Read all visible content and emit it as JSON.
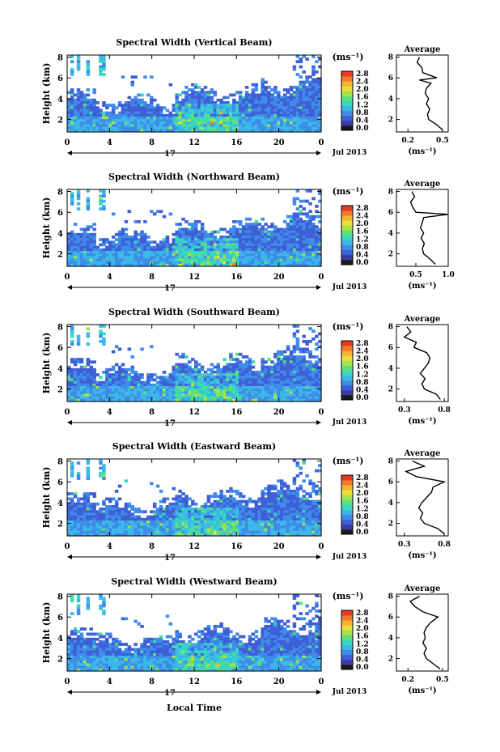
{
  "figure": {
    "xlabel": "Local Time",
    "date_label": "Jul 2013",
    "day_label": "17",
    "colorbar_unit": "(ms⁻¹)",
    "avg_title": "Average",
    "avg_unit": "(ms⁻¹)",
    "ylabel": "Height (km)"
  },
  "colors": {
    "scale": [
      "#1a1a1a",
      "#3b3ba8",
      "#3f5fd6",
      "#3f8ce8",
      "#3cb8e8",
      "#37d8c0",
      "#5ee07a",
      "#a8e24a",
      "#e8e238",
      "#f4b430",
      "#f27a28",
      "#e83a22"
    ]
  },
  "chart_data": [
    {
      "type": "heatmap",
      "title": "Spectral Width (Vertical Beam)",
      "x_ticks": [
        "0",
        "4",
        "8",
        "12",
        "16",
        "20",
        "0"
      ],
      "y_ticks": [
        "8",
        "6",
        "4",
        "2"
      ],
      "xlim": [
        0,
        24
      ],
      "ylim": [
        0.8,
        8.2
      ],
      "colorbar_ticks": [
        "2.8",
        "2.4",
        "2.0",
        "1.6",
        "1.2",
        "0.8",
        "0.4",
        "0.0"
      ],
      "colorbar_range": [
        0.0,
        2.8
      ],
      "average_profile": {
        "x_ticks": [
          "0.2",
          "0.5"
        ],
        "xlim": [
          0.1,
          0.55
        ],
        "y_ticks": [
          "8",
          "6",
          "4",
          "2"
        ],
        "ylim": [
          0.8,
          8.2
        ],
        "heights": [
          1.0,
          1.5,
          2.0,
          2.5,
          3.0,
          3.5,
          4.0,
          4.5,
          5.0,
          5.5,
          5.8,
          6.0,
          6.5,
          7.0,
          7.5,
          8.0
        ],
        "values": [
          0.5,
          0.45,
          0.38,
          0.37,
          0.39,
          0.36,
          0.38,
          0.35,
          0.36,
          0.4,
          0.3,
          0.45,
          0.33,
          0.32,
          0.28,
          0.3
        ]
      }
    },
    {
      "type": "heatmap",
      "title": "Spectral Width (Northward Beam)",
      "x_ticks": [
        "0",
        "4",
        "8",
        "12",
        "16",
        "20",
        "0"
      ],
      "y_ticks": [
        "8",
        "6",
        "4",
        "2"
      ],
      "xlim": [
        0,
        24
      ],
      "ylim": [
        0.8,
        8.2
      ],
      "colorbar_ticks": [
        "2.8",
        "2.4",
        "2.0",
        "1.6",
        "1.2",
        "0.8",
        "0.4",
        "0.0"
      ],
      "colorbar_range": [
        0.0,
        2.8
      ],
      "average_profile": {
        "x_ticks": [
          "0.5",
          "1.0"
        ],
        "xlim": [
          0.2,
          1.0
        ],
        "y_ticks": [
          "8",
          "6",
          "4",
          "2"
        ],
        "ylim": [
          0.8,
          8.2
        ],
        "heights": [
          1.0,
          1.5,
          2.0,
          2.5,
          3.0,
          3.5,
          4.0,
          4.5,
          5.0,
          5.5,
          5.8,
          6.0,
          6.5,
          7.0,
          7.5,
          8.0
        ],
        "values": [
          0.8,
          0.72,
          0.62,
          0.6,
          0.63,
          0.58,
          0.62,
          0.57,
          0.6,
          0.62,
          1.0,
          0.5,
          0.45,
          0.42,
          0.48,
          0.44
        ]
      }
    },
    {
      "type": "heatmap",
      "title": "Spectral Width (Southward Beam)",
      "x_ticks": [
        "0",
        "4",
        "8",
        "12",
        "16",
        "20",
        "0"
      ],
      "y_ticks": [
        "8",
        "6",
        "4",
        "2"
      ],
      "xlim": [
        0,
        24
      ],
      "ylim": [
        0.8,
        8.2
      ],
      "colorbar_ticks": [
        "2.8",
        "2.4",
        "2.0",
        "1.6",
        "1.2",
        "0.8",
        "0.4",
        "0.0"
      ],
      "colorbar_range": [
        0.0,
        2.8
      ],
      "average_profile": {
        "x_ticks": [
          "0.3",
          "0.8"
        ],
        "xlim": [
          0.2,
          0.85
        ],
        "y_ticks": [
          "8",
          "6",
          "4",
          "2"
        ],
        "ylim": [
          0.8,
          8.2
        ],
        "heights": [
          1.0,
          1.5,
          2.0,
          2.5,
          3.0,
          3.5,
          4.0,
          4.5,
          5.0,
          5.5,
          6.0,
          6.5,
          7.0,
          7.5,
          8.0
        ],
        "values": [
          0.75,
          0.7,
          0.55,
          0.52,
          0.56,
          0.5,
          0.55,
          0.6,
          0.62,
          0.58,
          0.42,
          0.45,
          0.3,
          0.38,
          0.33
        ]
      }
    },
    {
      "type": "heatmap",
      "title": "Spectral Width (Eastward Beam)",
      "x_ticks": [
        "0",
        "4",
        "8",
        "12",
        "16",
        "20",
        "0"
      ],
      "y_ticks": [
        "8",
        "6",
        "4",
        "2"
      ],
      "xlim": [
        0,
        24
      ],
      "ylim": [
        0.8,
        8.2
      ],
      "colorbar_ticks": [
        "2.8",
        "2.4",
        "2.0",
        "1.6",
        "1.2",
        "0.8",
        "0.4",
        "0.0"
      ],
      "colorbar_range": [
        0.0,
        2.8
      ],
      "average_profile": {
        "x_ticks": [
          "0.3",
          "0.8"
        ],
        "xlim": [
          0.2,
          0.85
        ],
        "y_ticks": [
          "8",
          "6",
          "4",
          "2"
        ],
        "ylim": [
          0.8,
          8.2
        ],
        "heights": [
          1.0,
          1.5,
          2.0,
          2.5,
          3.0,
          3.5,
          4.0,
          4.5,
          5.0,
          5.5,
          6.0,
          6.5,
          7.0,
          7.5,
          8.0
        ],
        "values": [
          0.8,
          0.72,
          0.55,
          0.5,
          0.53,
          0.48,
          0.52,
          0.58,
          0.64,
          0.66,
          0.8,
          0.45,
          0.32,
          0.55,
          0.4
        ]
      }
    },
    {
      "type": "heatmap",
      "title": "Spectral Width (Westward Beam)",
      "x_ticks": [
        "0",
        "4",
        "8",
        "12",
        "16",
        "20",
        "0"
      ],
      "y_ticks": [
        "8",
        "6",
        "4",
        "2"
      ],
      "xlim": [
        0,
        24
      ],
      "ylim": [
        0.8,
        8.2
      ],
      "colorbar_ticks": [
        "2.8",
        "2.4",
        "2.0",
        "1.6",
        "1.2",
        "0.8",
        "0.4",
        "0.0"
      ],
      "colorbar_range": [
        0.0,
        2.8
      ],
      "average_profile": {
        "x_ticks": [
          "0.2",
          "0.5"
        ],
        "xlim": [
          0.1,
          0.55
        ],
        "y_ticks": [
          "8",
          "6",
          "4",
          "2"
        ],
        "ylim": [
          0.8,
          8.2
        ],
        "heights": [
          1.0,
          1.5,
          2.0,
          2.5,
          3.0,
          3.5,
          4.0,
          4.5,
          5.0,
          5.5,
          6.0,
          6.5,
          7.0,
          7.5,
          8.0
        ],
        "values": [
          0.48,
          0.42,
          0.36,
          0.34,
          0.36,
          0.33,
          0.35,
          0.34,
          0.36,
          0.4,
          0.46,
          0.33,
          0.26,
          0.22,
          0.3
        ]
      }
    }
  ]
}
